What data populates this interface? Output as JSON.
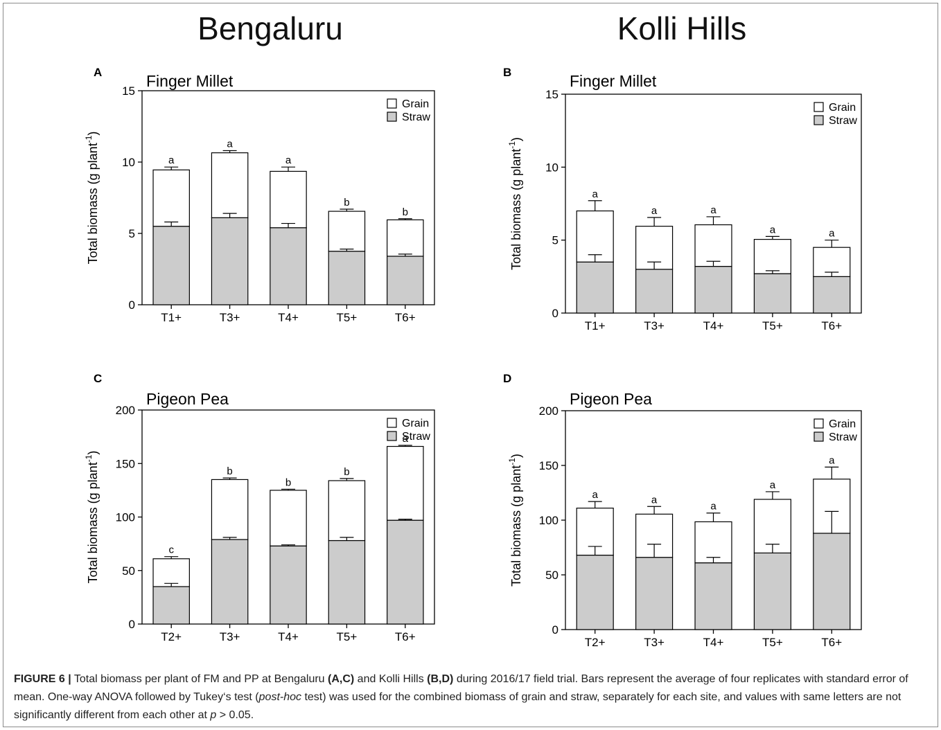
{
  "sites": {
    "left": "Bengaluru",
    "right": "Kolli Hills"
  },
  "legend": {
    "grain": "Grain",
    "straw": "Straw"
  },
  "colors": {
    "grain": "#ffffff",
    "straw": "#cccccc",
    "stroke": "#000000"
  },
  "caption": {
    "label": "FIGURE 6 |",
    "t1": " Total biomass per plant of FM and PP at Bengaluru ",
    "b1": "(A,C)",
    "t2": " and Kolli Hills ",
    "b2": "(B,D)",
    "t3": " during 2016/17 field trial. Bars represent the average of four replicates with standard error of mean. One-way ANOVA followed by Tukey‘s test (",
    "i1": "post-hoc",
    "t4": " test) was used for the combined biomass of grain and straw, separately for each site, and values with same letters are not significantly different from each other at ",
    "i2": "p",
    "t5": " > 0.05."
  },
  "chart_data": [
    {
      "panel": "A",
      "type": "bar",
      "stacked": true,
      "title": "Finger Millet",
      "ylabel": "Total biomass (g plant-1)",
      "ylim": [
        0,
        15
      ],
      "yticks": [
        0,
        5,
        10,
        15
      ],
      "categories": [
        "T1+",
        "T3+",
        "T4+",
        "T5+",
        "T6+"
      ],
      "series": [
        {
          "name": "Straw",
          "values": [
            5.5,
            6.1,
            5.4,
            3.75,
            3.4
          ],
          "error": [
            0.3,
            0.3,
            0.3,
            0.15,
            0.15
          ]
        },
        {
          "name": "Grain",
          "values": [
            3.95,
            4.55,
            3.95,
            2.8,
            2.55
          ],
          "error": [
            0.2,
            0.15,
            0.3,
            0.15,
            0.08
          ]
        }
      ],
      "letters": [
        "a",
        "a",
        "a",
        "b",
        "b"
      ],
      "legend": "top-right"
    },
    {
      "panel": "B",
      "type": "bar",
      "stacked": true,
      "title": "Finger Millet",
      "ylabel": "Total biomass (g plant-1)",
      "ylim": [
        0,
        15
      ],
      "yticks": [
        0,
        5,
        10,
        15
      ],
      "categories": [
        "T1+",
        "T3+",
        "T4+",
        "T5+",
        "T6+"
      ],
      "series": [
        {
          "name": "Straw",
          "values": [
            3.5,
            3.0,
            3.2,
            2.7,
            2.5
          ],
          "error": [
            0.5,
            0.5,
            0.35,
            0.2,
            0.3
          ]
        },
        {
          "name": "Grain",
          "values": [
            3.5,
            2.95,
            2.85,
            2.35,
            2.0
          ],
          "error": [
            0.7,
            0.6,
            0.55,
            0.2,
            0.5
          ]
        }
      ],
      "letters": [
        "a",
        "a",
        "a",
        "a",
        "a"
      ],
      "legend": "top-right"
    },
    {
      "panel": "C",
      "type": "bar",
      "stacked": true,
      "title": "Pigeon Pea",
      "ylabel": "Total biomass (g plant-1)",
      "ylim": [
        0,
        200
      ],
      "yticks": [
        0,
        50,
        100,
        150,
        200
      ],
      "categories": [
        "T2+",
        "T3+",
        "T4+",
        "T5+",
        "T6+"
      ],
      "series": [
        {
          "name": "Straw",
          "values": [
            35,
            79,
            73,
            78,
            97
          ],
          "error": [
            3,
            2,
            1,
            3,
            1
          ]
        },
        {
          "name": "Grain",
          "values": [
            26,
            56,
            52,
            56,
            69
          ],
          "error": [
            2,
            1.5,
            1,
            2,
            1
          ]
        }
      ],
      "letters": [
        "c",
        "b",
        "b",
        "b",
        "a"
      ],
      "legend": "top-right"
    },
    {
      "panel": "D",
      "type": "bar",
      "stacked": true,
      "title": "Pigeon Pea",
      "ylabel": "Total biomass (g plant-1)",
      "ylim": [
        0,
        200
      ],
      "yticks": [
        0,
        50,
        100,
        150,
        200
      ],
      "categories": [
        "T2+",
        "T3+",
        "T4+",
        "T5+",
        "T6+"
      ],
      "series": [
        {
          "name": "Straw",
          "values": [
            68,
            66,
            61,
            70,
            88
          ],
          "error": [
            8,
            12,
            5,
            8,
            20
          ]
        },
        {
          "name": "Grain",
          "values": [
            43,
            39.5,
            37.5,
            49,
            49.5
          ],
          "error": [
            6,
            7,
            8,
            7,
            11
          ]
        }
      ],
      "letters": [
        "a",
        "a",
        "a",
        "a",
        "a"
      ],
      "legend": "top-right"
    }
  ]
}
